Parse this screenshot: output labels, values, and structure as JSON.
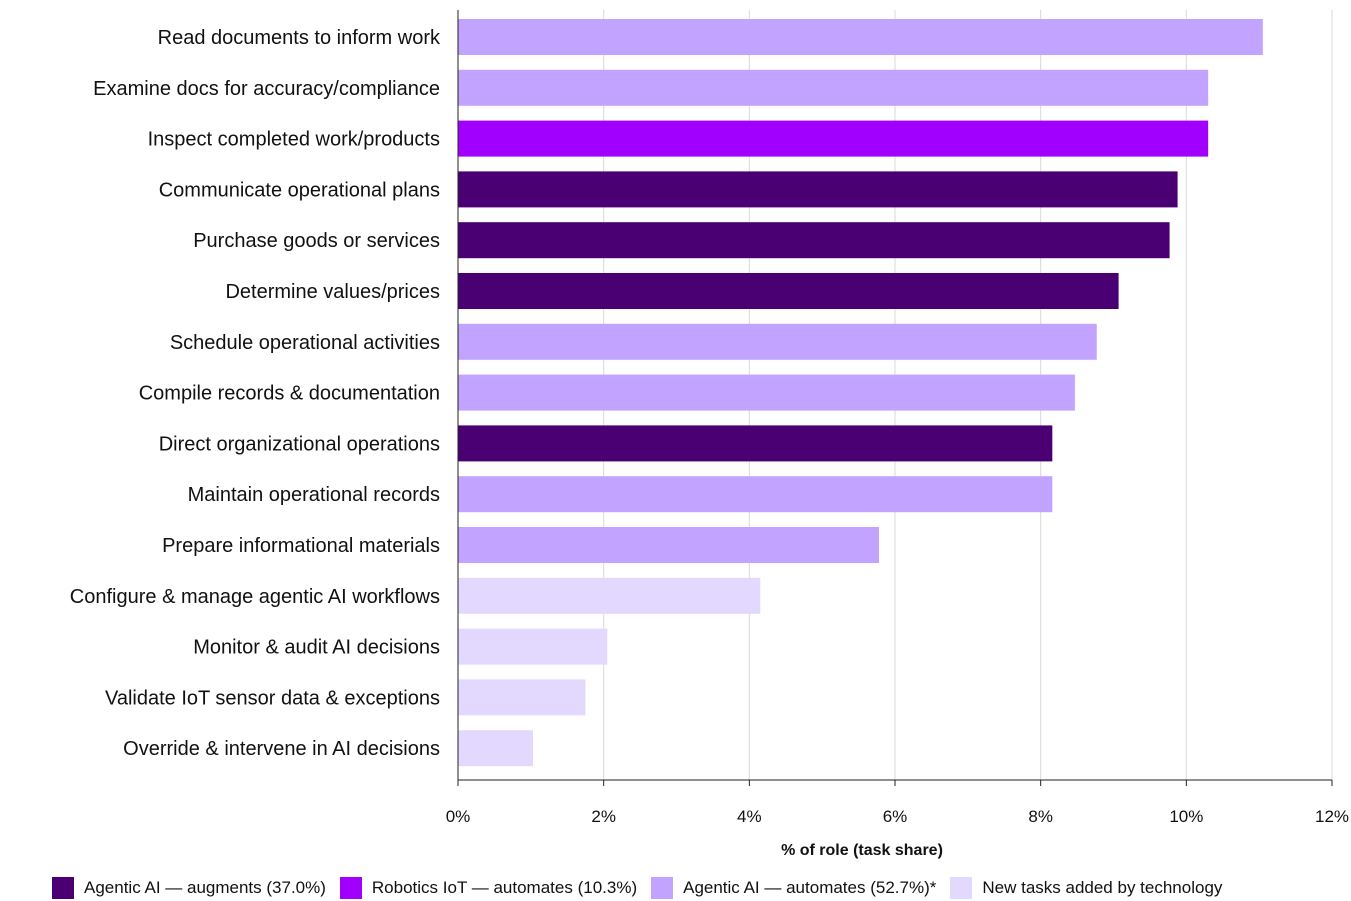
{
  "chart_data": {
    "type": "bar",
    "orientation": "horizontal",
    "categories": [
      "Read documents to inform work",
      "Examine docs for accuracy/compliance",
      "Inspect completed work/products",
      "Communicate operational plans",
      "Purchase goods or services",
      "Determine values/prices",
      "Schedule operational activities",
      "Compile records & documentation",
      "Direct organizational operations",
      "Maintain operational records",
      "Prepare informational materials",
      "Configure & manage agentic AI workflows",
      "Monitor & audit AI decisions",
      "Validate IoT sensor data & exceptions",
      "Override & intervene in AI decisions"
    ],
    "values": [
      11.05,
      10.3,
      10.3,
      9.88,
      9.77,
      9.07,
      8.77,
      8.47,
      8.16,
      8.16,
      5.78,
      4.15,
      2.05,
      1.75,
      1.03
    ],
    "groups": [
      2,
      2,
      1,
      0,
      0,
      0,
      2,
      2,
      0,
      2,
      2,
      3,
      3,
      3,
      3
    ],
    "legend": [
      {
        "label": "Agentic AI — augments (37.0%)",
        "color": "#4a0072"
      },
      {
        "label": "Robotics IoT — automates (10.3%)",
        "color": "#a100ff"
      },
      {
        "label": "Agentic AI — automates (52.7%)*",
        "color": "#c2a3ff"
      },
      {
        "label": "New tasks added by technology",
        "color": "#e3d9ff"
      }
    ],
    "xlabel": "% of role (task share)",
    "ylabel": "",
    "xlim": [
      0,
      12
    ],
    "xticks": [
      "0%",
      "2%",
      "4%",
      "6%",
      "8%",
      "10%",
      "12%"
    ],
    "grid": "vertical",
    "legend_position": "bottom"
  }
}
